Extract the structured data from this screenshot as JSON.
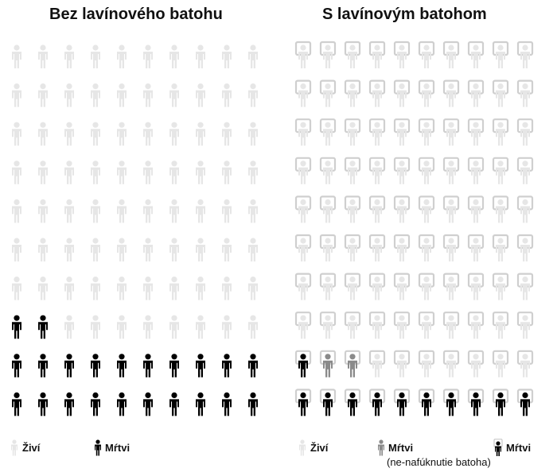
{
  "panels": [
    {
      "title": "Bez lavínového batohu",
      "total": 100,
      "counts": {
        "alive": 78,
        "dead": 22
      },
      "icon": "person-icon",
      "legend": [
        {
          "label": "Živí",
          "icon": "person-icon",
          "color": "#e6e6e6"
        },
        {
          "label": "Mŕtvi",
          "icon": "person-icon",
          "color": "#000000"
        }
      ]
    },
    {
      "title": "S lavínovým batohom",
      "total": 110,
      "counts": {
        "alive": 97,
        "dead_not_inflated": 2,
        "dead": 11
      },
      "icon": "person-with-airbag-icon",
      "legend": [
        {
          "label": "Živí",
          "icon": "person-icon",
          "color": "#e6e6e6"
        },
        {
          "label": "Mŕtvi",
          "sublabel": "(ne-nafúknutie batoha)",
          "icon": "person-icon",
          "color": "#8a8a8a"
        },
        {
          "label": "Mŕtvi",
          "icon": "person-with-airbag-icon",
          "color": "#000000"
        }
      ]
    }
  ],
  "colors": {
    "alive": "#e6e6e6",
    "dead_not_inflated": "#8a8a8a",
    "dead": "#000000",
    "frame": "#cfcfcf"
  }
}
